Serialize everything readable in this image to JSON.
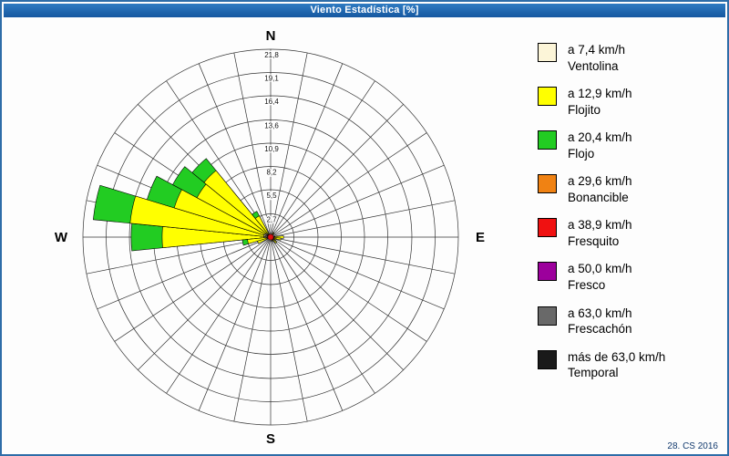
{
  "window": {
    "title": "Viento Estadística [%]",
    "footer": "28. CS 2016"
  },
  "chart_data": {
    "type": "windrose",
    "title": "Viento Estadística [%]",
    "units": "%",
    "max_value": 21.8,
    "sectors": 32,
    "grid": true,
    "legend_position": "right",
    "center_marker_color": "#E01010",
    "compass": {
      "n": "N",
      "e": "E",
      "s": "S",
      "w": "W"
    },
    "rings": [
      {
        "value": 21.8,
        "label": "21,8"
      },
      {
        "value": 19.1,
        "label": "19,1"
      },
      {
        "value": 16.4,
        "label": "16,4"
      },
      {
        "value": 13.6,
        "label": "13,6"
      },
      {
        "value": 10.9,
        "label": "10,9"
      },
      {
        "value": 8.2,
        "label": "8,2"
      },
      {
        "value": 5.5,
        "label": "5,5"
      },
      {
        "value": 2.7,
        "label": "2,7"
      }
    ],
    "series": [
      {
        "id": "ventolina",
        "speed": "a 7,4 km/h",
        "name": "Ventolina",
        "color": "#FCF5D8"
      },
      {
        "id": "flojito",
        "speed": "a 12,9 km/h",
        "name": "Flojito",
        "color": "#FFFF00"
      },
      {
        "id": "flojo",
        "speed": "a 20,4 km/h",
        "name": "Flojo",
        "color": "#22CC22"
      },
      {
        "id": "bonancible",
        "speed": "a 29,6 km/h",
        "name": "Bonancible",
        "color": "#F08213"
      },
      {
        "id": "fresquito",
        "speed": "a 38,9 km/h",
        "name": "Fresquito",
        "color": "#F01111"
      },
      {
        "id": "fresco",
        "speed": "a 50,0 km/h",
        "name": "Fresco",
        "color": "#9C009C"
      },
      {
        "id": "frescachon",
        "speed": "a 63,0 km/h",
        "name": "Frescachón",
        "color": "#696969"
      },
      {
        "id": "temporal",
        "speed": "más de 63,0 km/h",
        "name": "Temporal",
        "color": "#1A1A1A"
      }
    ],
    "petals": [
      {
        "dir": 270.0,
        "segments": {
          "ventolina": 0.8,
          "flojito": 11.8,
          "flojo": 3.6
        }
      },
      {
        "dir": 281.25,
        "segments": {
          "ventolina": 0.8,
          "flojito": 15.6,
          "flojo": 4.3
        }
      },
      {
        "dir": 292.5,
        "segments": {
          "ventolina": 0.8,
          "flojito": 10.9,
          "flojo": 3.3
        }
      },
      {
        "dir": 303.75,
        "segments": {
          "ventolina": 0.7,
          "flojito": 9.0,
          "flojo": 3.2
        }
      },
      {
        "dir": 315.0,
        "segments": {
          "ventolina": 0.6,
          "flojito": 9.4,
          "flojo": 1.8
        }
      },
      {
        "dir": 326.25,
        "segments": {
          "ventolina": 0.4,
          "flojito": 2.4,
          "flojo": 0.6
        }
      },
      {
        "dir": 258.75,
        "segments": {
          "ventolina": 0.5,
          "flojito": 2.2,
          "flojo": 0.6
        }
      },
      {
        "dir": 247.5,
        "segments": {
          "ventolina": 0.4,
          "flojito": 1.2
        }
      },
      {
        "dir": 90.0,
        "segments": {
          "ventolina": 0.5,
          "flojito": 1.0
        }
      },
      {
        "dir": 101.25,
        "segments": {
          "ventolina": 0.4,
          "flojito": 0.8
        }
      },
      {
        "dir": 112.5,
        "segments": {
          "flojito": 0.7
        }
      },
      {
        "dir": 135.0,
        "segments": {
          "ventolina": 0.3,
          "flojito": 0.6
        }
      },
      {
        "dir": 157.5,
        "segments": {
          "flojito": 0.5
        }
      },
      {
        "dir": 33.75,
        "segments": {
          "flojito": 0.6
        }
      }
    ]
  }
}
